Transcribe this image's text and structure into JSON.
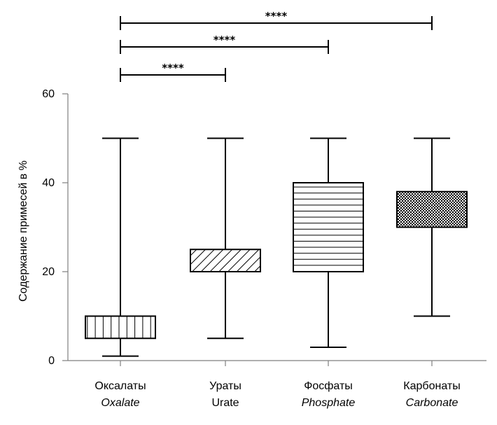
{
  "chart_data": {
    "type": "box",
    "title": "",
    "xlabel": "",
    "ylabel": "Содержание примесей в %",
    "ylim": [
      0,
      60
    ],
    "yticks": [
      0,
      20,
      40,
      60
    ],
    "grid": false,
    "categories": [
      {
        "label": "Оксалаты",
        "label_en": "Oxalate",
        "en_italic": true,
        "pattern": "vertical-lines"
      },
      {
        "label": "Ураты",
        "label_en": "Urate",
        "en_italic": false,
        "pattern": "diagonal-lines"
      },
      {
        "label": "Фосфаты",
        "label_en": "Phosphate",
        "en_italic": true,
        "pattern": "horizontal-lines"
      },
      {
        "label": "Карбонаты",
        "label_en": "Carbonate",
        "en_italic": true,
        "pattern": "checkerboard"
      }
    ],
    "boxes": [
      {
        "min": 1,
        "q1": 5,
        "q3": 10,
        "max": 50
      },
      {
        "min": 5,
        "q1": 20,
        "q3": 25,
        "max": 50
      },
      {
        "min": 3,
        "q1": 20,
        "q3": 40,
        "max": 50
      },
      {
        "min": 10,
        "q1": 30,
        "q3": 38,
        "max": 50
      }
    ],
    "significance": [
      {
        "from": 0,
        "to": 1,
        "label": "****"
      },
      {
        "from": 0,
        "to": 2,
        "label": "****"
      },
      {
        "from": 0,
        "to": 3,
        "label": "****"
      }
    ]
  }
}
